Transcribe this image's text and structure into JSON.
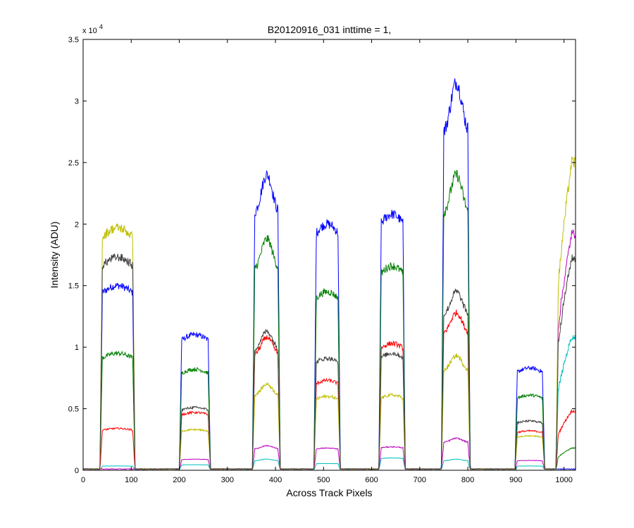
{
  "chart_data": {
    "type": "line",
    "title": "B20120916_031 inttime = 1,",
    "xlabel": "Across Track Pixels",
    "ylabel": "Intensity (ADU)",
    "xlim": [
      0,
      1024
    ],
    "ylim": [
      0,
      35000
    ],
    "x_ticks": [
      0,
      100,
      200,
      300,
      400,
      500,
      600,
      700,
      800,
      900,
      1000
    ],
    "y_ticks": [
      0,
      5000,
      10000,
      15000,
      20000,
      25000,
      30000,
      35000
    ],
    "y_tick_labels": [
      "0",
      "0.5",
      "1",
      "1.5",
      "2",
      "2.5",
      "3",
      "3.5"
    ],
    "y_exponent_label": "x 10",
    "y_exponent_power": "4",
    "grid": false,
    "legend": "none",
    "baseline": 100,
    "blocks": [
      {
        "x_start": 35,
        "x_end": 108,
        "shape": "flat"
      },
      {
        "x_start": 200,
        "x_end": 265,
        "shape": "flat"
      },
      {
        "x_start": 352,
        "x_end": 410,
        "shape": "peak"
      },
      {
        "x_start": 480,
        "x_end": 535,
        "shape": "flat"
      },
      {
        "x_start": 615,
        "x_end": 670,
        "shape": "flat"
      },
      {
        "x_start": 745,
        "x_end": 805,
        "shape": "peak"
      },
      {
        "x_start": 898,
        "x_end": 960,
        "shape": "flat"
      },
      {
        "x_start": 983,
        "x_end": 1024,
        "shape": "rising"
      }
    ],
    "series": [
      {
        "color": "#0000ff",
        "levels": [
          15000,
          11000,
          24000,
          20000,
          20800,
          31500,
          8300,
          0
        ]
      },
      {
        "color": "#008000",
        "levels": [
          9500,
          8200,
          18800,
          14500,
          16600,
          24000,
          6100,
          1800
        ]
      },
      {
        "color": "#ff0000",
        "levels": [
          3400,
          4700,
          10800,
          7300,
          10300,
          12800,
          3200,
          4800
        ]
      },
      {
        "color": "#00bfbf",
        "levels": [
          350,
          450,
          900,
          550,
          1000,
          900,
          350,
          10800
        ]
      },
      {
        "color": "#bf00bf",
        "levels": [
          0,
          900,
          2000,
          1800,
          1900,
          2600,
          800,
          19200
        ]
      },
      {
        "color": "#bfbf00",
        "levels": [
          19700,
          3300,
          7000,
          6000,
          6100,
          9300,
          2800,
          25000
        ]
      },
      {
        "color": "#404040",
        "levels": [
          17300,
          5100,
          11300,
          9100,
          9500,
          14500,
          4000,
          17200
        ]
      }
    ]
  }
}
